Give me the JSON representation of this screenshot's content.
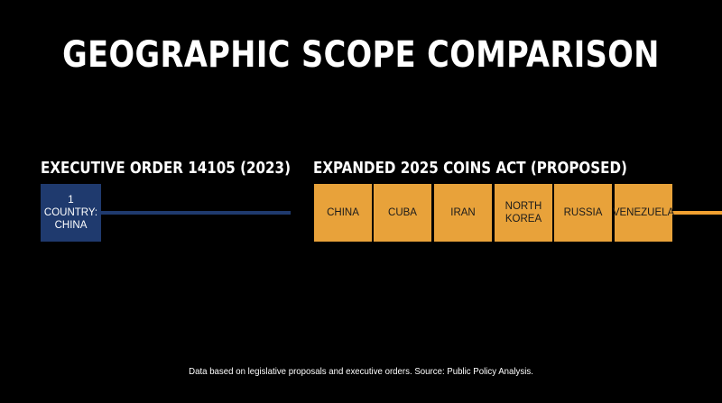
{
  "title": "GEOGRAPHIC SCOPE COMPARISON",
  "left_section": {
    "label": "EXECUTIVE ORDER 14105 (2023)",
    "box_line1": "1 COUNTRY:",
    "box_line2": "CHINA"
  },
  "right_section": {
    "label": "EXPANDED 2025 COINS ACT (PROPOSED)",
    "countries": [
      {
        "line1": "CHINA",
        "line2": ""
      },
      {
        "line1": "CUBA",
        "line2": ""
      },
      {
        "line1": "IRAN",
        "line2": ""
      },
      {
        "line1": "NORTH",
        "line2": "KOREA"
      },
      {
        "line1": "RUSSIA",
        "line2": ""
      },
      {
        "line1": "VENEZUELA",
        "line2": ""
      }
    ]
  },
  "footer": "Data based on legislative proposals and executive orders. Source: Public Policy Analysis.",
  "colors": {
    "background": "#000000",
    "blue": "#1f3a6e",
    "orange": "#e8a23a",
    "orange_line": "#f0a030"
  }
}
